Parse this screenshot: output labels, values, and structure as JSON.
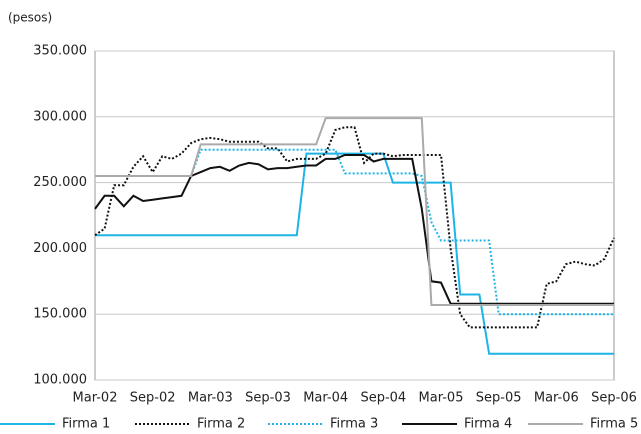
{
  "chart_data": {
    "type": "line",
    "y_label": "(pesos)",
    "categories": [
      "Mar-02",
      null,
      null,
      null,
      null,
      null,
      "Sep-02",
      null,
      null,
      null,
      null,
      null,
      "Mar-03",
      null,
      null,
      null,
      null,
      null,
      "Sep-03",
      null,
      null,
      null,
      null,
      null,
      "Mar-04",
      null,
      null,
      null,
      null,
      null,
      "Sep-04",
      null,
      null,
      null,
      null,
      null,
      "Mar-05",
      null,
      null,
      null,
      null,
      null,
      "Sep-05",
      null,
      null,
      null,
      null,
      null,
      "Mar-06",
      null,
      null,
      null,
      null,
      null,
      "Sep-06"
    ],
    "ylim": [
      100000,
      350000
    ],
    "yticks": [
      {
        "value": 100000,
        "label": "100.000"
      },
      {
        "value": 150000,
        "label": "150.000"
      },
      {
        "value": 200000,
        "label": "200.000"
      },
      {
        "value": 250000,
        "label": "250.000"
      },
      {
        "value": 300000,
        "label": "300.000"
      },
      {
        "value": 350000,
        "label": "350.000"
      }
    ],
    "grid": true,
    "legend": "bottom",
    "series": [
      {
        "name": "Firma 1",
        "color": "#1eb4e6",
        "dash": "solid",
        "values": [
          210000,
          210000,
          210000,
          210000,
          210000,
          210000,
          210000,
          210000,
          210000,
          210000,
          210000,
          210000,
          210000,
          210000,
          210000,
          210000,
          210000,
          210000,
          210000,
          210000,
          210000,
          210000,
          272000,
          272000,
          272000,
          272000,
          272000,
          272000,
          272000,
          272000,
          272000,
          250000,
          250000,
          250000,
          250000,
          250000,
          250000,
          250000,
          165000,
          165000,
          165000,
          120000,
          120000,
          120000,
          120000,
          120000,
          120000,
          120000,
          120000,
          120000,
          120000,
          120000,
          120000,
          120000,
          120000
        ]
      },
      {
        "name": "Firma 2",
        "color": "#111111",
        "dash": "dotted",
        "values": [
          210000,
          215000,
          248000,
          248000,
          262000,
          270000,
          258000,
          270000,
          268000,
          272000,
          280000,
          283000,
          284000,
          283000,
          281000,
          281000,
          281000,
          281000,
          276000,
          276000,
          266000,
          268000,
          268000,
          268000,
          272000,
          290000,
          292000,
          292000,
          265000,
          272000,
          272000,
          270000,
          271000,
          271000,
          271000,
          271000,
          271000,
          200000,
          150000,
          140000,
          140000,
          140000,
          140000,
          140000,
          140000,
          140000,
          140000,
          173000,
          175000,
          188000,
          190000,
          188000,
          187000,
          192000,
          208000
        ]
      },
      {
        "name": "Firma 3",
        "color": "#1eb4e6",
        "dash": "dotted",
        "values": [
          255000,
          255000,
          255000,
          255000,
          255000,
          255000,
          255000,
          255000,
          255000,
          255000,
          255000,
          275000,
          275000,
          275000,
          275000,
          275000,
          275000,
          275000,
          275000,
          275000,
          275000,
          275000,
          275000,
          275000,
          275000,
          275000,
          257000,
          257000,
          257000,
          257000,
          257000,
          257000,
          257000,
          257000,
          255000,
          220000,
          206000,
          206000,
          206000,
          206000,
          206000,
          206000,
          150000,
          150000,
          150000,
          150000,
          150000,
          150000,
          150000,
          150000,
          150000,
          150000,
          150000,
          150000,
          150000
        ]
      },
      {
        "name": "Firma 4",
        "color": "#111111",
        "dash": "solid",
        "values": [
          230000,
          240000,
          240000,
          232000,
          240000,
          236000,
          237000,
          238000,
          239000,
          240000,
          255000,
          258000,
          261000,
          262000,
          259000,
          263000,
          265000,
          264000,
          260000,
          261000,
          261000,
          262000,
          263000,
          263000,
          268000,
          268000,
          271000,
          271000,
          271000,
          266000,
          268000,
          268000,
          268000,
          268000,
          230000,
          175000,
          174000,
          158000,
          158000,
          158000,
          158000,
          158000,
          158000,
          158000,
          158000,
          158000,
          158000,
          158000,
          158000,
          158000,
          158000,
          158000,
          158000,
          158000,
          158000
        ]
      },
      {
        "name": "Firma 5",
        "color": "#aaaaaa",
        "dash": "solid",
        "values": [
          255000,
          255000,
          255000,
          255000,
          255000,
          255000,
          255000,
          255000,
          255000,
          255000,
          255000,
          279000,
          279000,
          279000,
          279000,
          279000,
          279000,
          279000,
          279000,
          279000,
          279000,
          279000,
          279000,
          279000,
          299000,
          299000,
          299000,
          299000,
          299000,
          299000,
          299000,
          299000,
          299000,
          299000,
          299000,
          157000,
          157000,
          157000,
          157000,
          157000,
          157000,
          157000,
          157000,
          157000,
          157000,
          157000,
          157000,
          157000,
          157000,
          157000,
          157000,
          157000,
          157000,
          157000,
          157000
        ]
      }
    ]
  }
}
